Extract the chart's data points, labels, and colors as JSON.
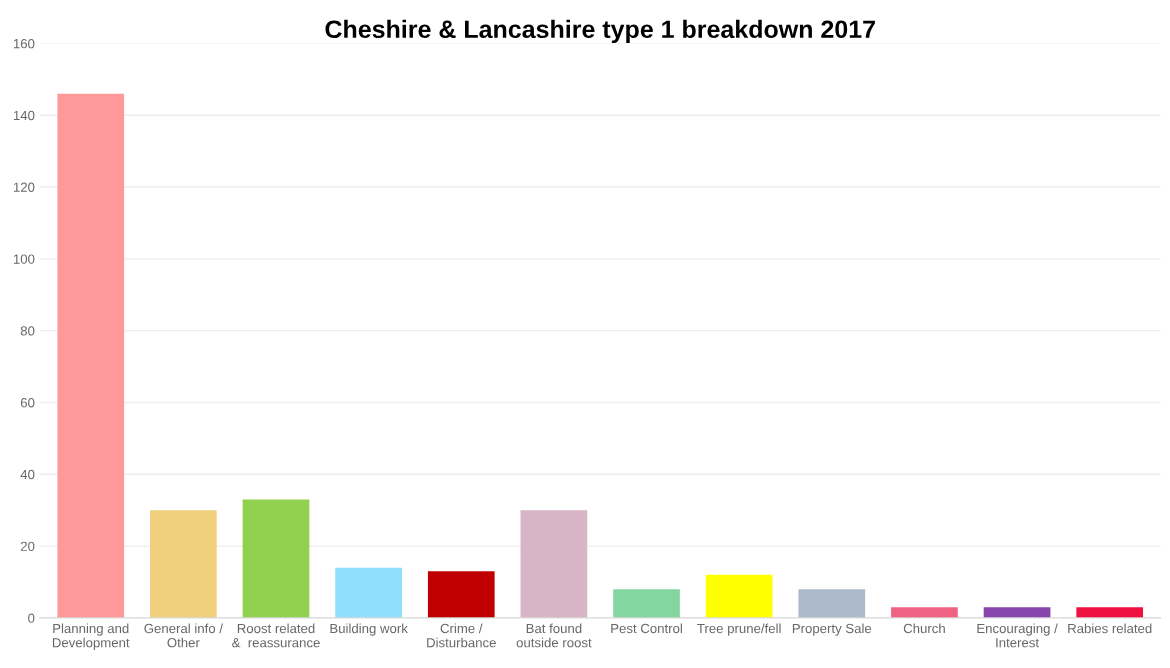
{
  "chart_data": {
    "type": "bar",
    "title": "Cheshire & Lancashire type 1 breakdown 2017",
    "categories": [
      "Planning and\nDevelopment",
      "General info /\nOther",
      "Roost related\n&  reassurance",
      "Building work",
      "Crime /\nDisturbance",
      "Bat found\noutside roost",
      "Pest Control",
      "Tree prune/fell",
      "Property Sale",
      "Church",
      "Encouraging /\nInterest",
      "Rabies related"
    ],
    "values": [
      146,
      30,
      33,
      14,
      13,
      30,
      8,
      12,
      8,
      3,
      3,
      3
    ],
    "colors": [
      "#ff9999",
      "#f0d07c",
      "#92d050",
      "#8ee0fc",
      "#c00000",
      "#d7b4c6",
      "#84d6a0",
      "#ffff00",
      "#acb9ca",
      "#f06283",
      "#8646ac",
      "#ee1142"
    ],
    "ylim": [
      0,
      160
    ],
    "yticks": [
      0,
      20,
      40,
      60,
      80,
      100,
      120,
      140,
      160
    ],
    "grid": "y",
    "legend": false
  }
}
